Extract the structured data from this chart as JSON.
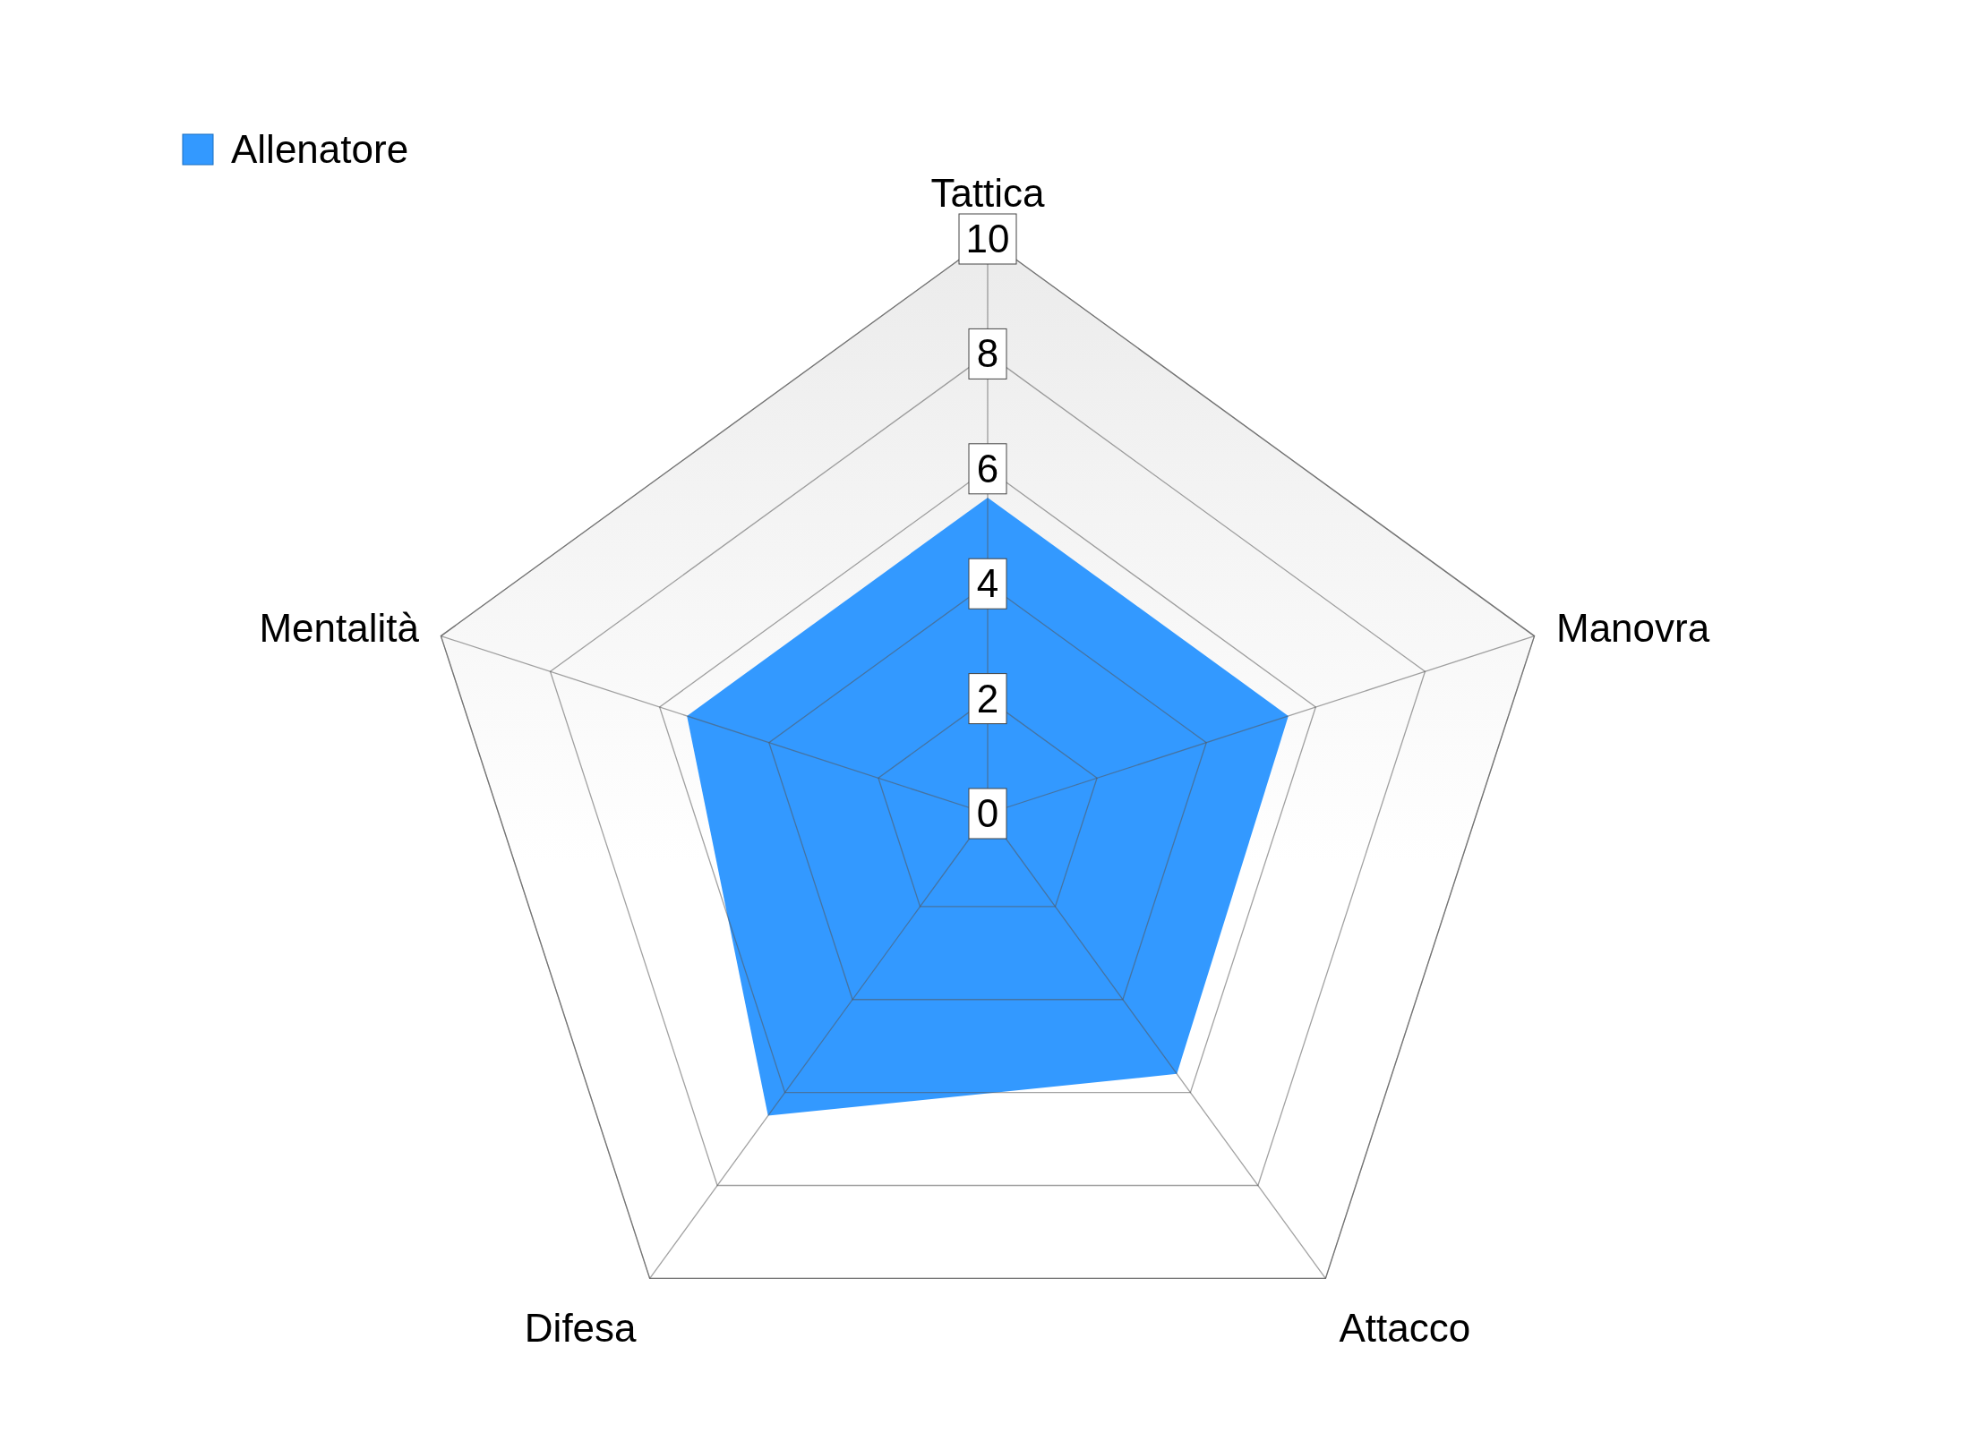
{
  "chart_data": {
    "type": "radar",
    "categories": [
      "Tattica",
      "Manovra",
      "Attacco",
      "Difesa",
      "Mentalità"
    ],
    "series": [
      {
        "name": "Allenatore",
        "color": "#3399ff",
        "values": [
          5.5,
          5.5,
          5.6,
          6.5,
          5.5
        ]
      }
    ],
    "ylim": [
      0,
      10
    ],
    "yticks": [
      0,
      2,
      4,
      6,
      8,
      10
    ],
    "grid": true,
    "legend": "top left"
  }
}
